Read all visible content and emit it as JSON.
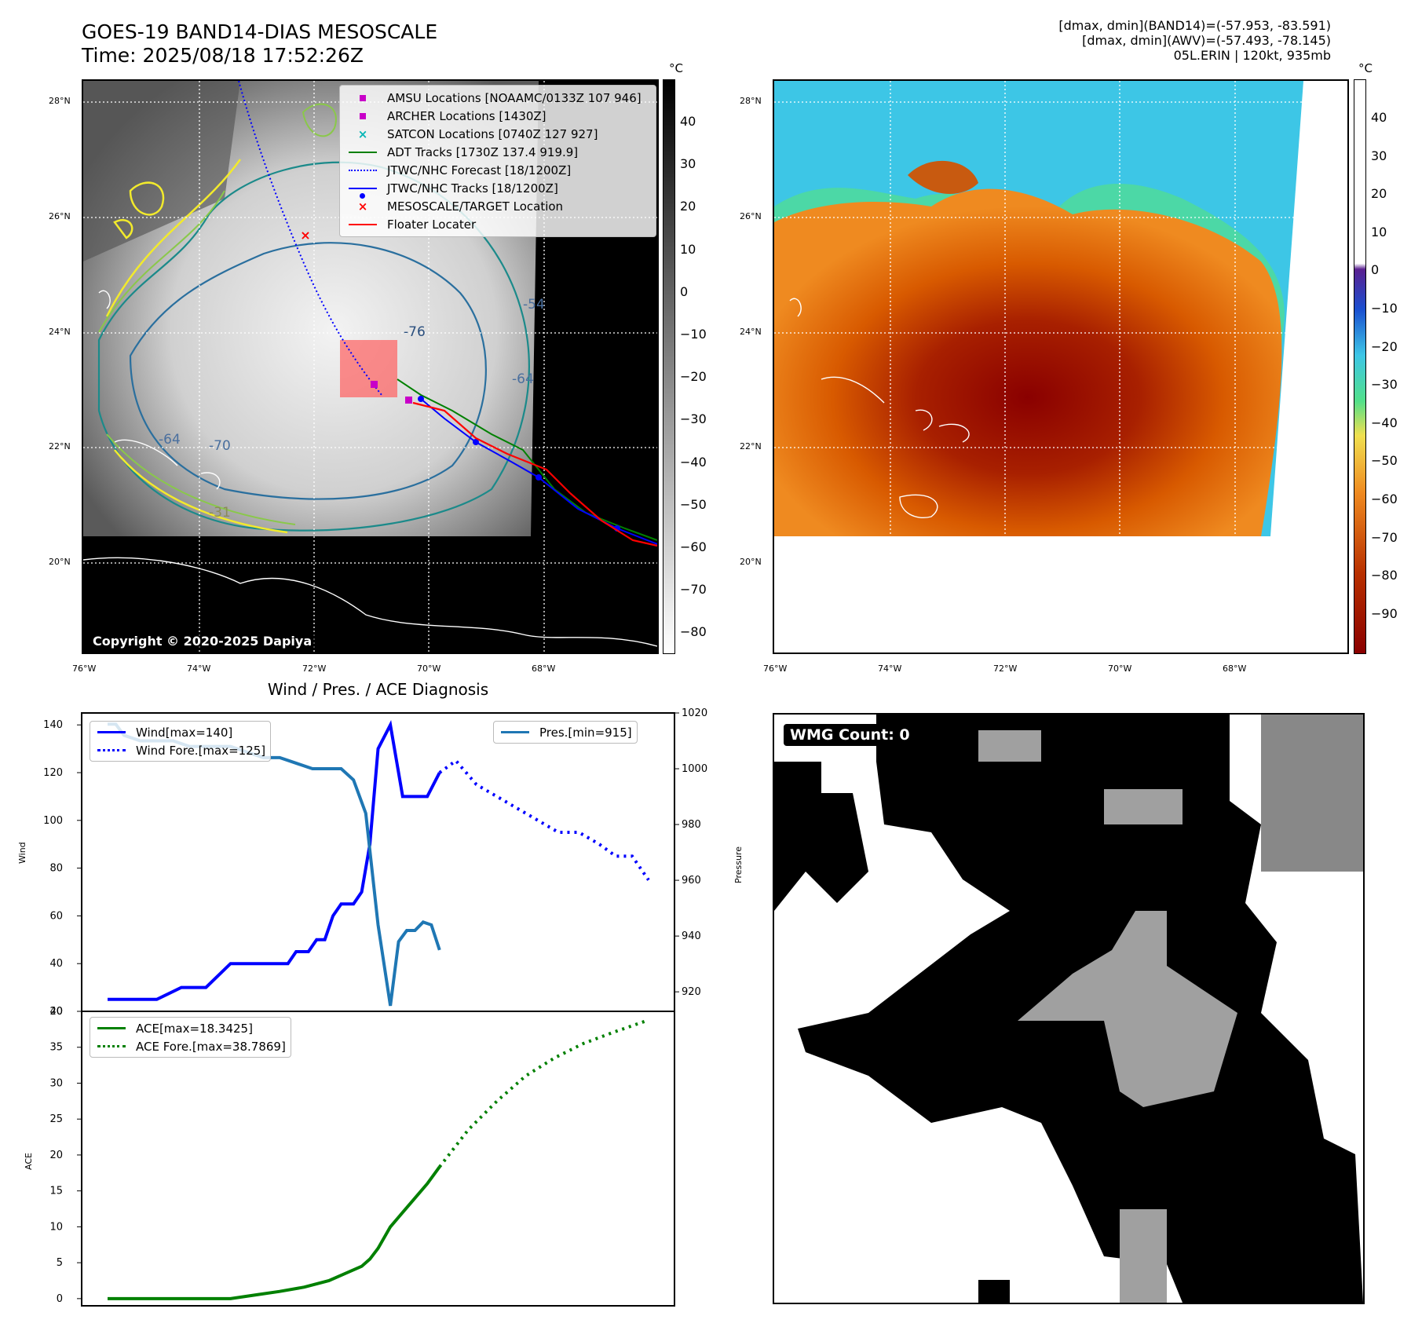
{
  "header": {
    "title_line1": "GOES-19 BAND14-DIAS MESOSCALE",
    "title_line2": "Time: 2025/08/18 17:52:26Z",
    "right_line1": "[dmax, dmin](BAND14)=(-57.953, -83.591)",
    "right_line2": "[dmax, dmin](AWV)=(-57.493, -78.145)",
    "right_line3": "05L.ERIN | 120kt, 935mb"
  },
  "map": {
    "lat_labels": [
      "28°N",
      "26°N",
      "24°N",
      "22°N",
      "20°N"
    ],
    "lon_labels": [
      "76°W",
      "74°W",
      "72°W",
      "70°W",
      "68°W"
    ],
    "copyright": "Copyright © 2020-2025 Dapiya",
    "contour_labels": [
      "-76",
      "-64",
      "-64",
      "-54",
      "-70",
      "-31"
    ],
    "legend": [
      {
        "label": "AMSU Locations [NOAAMC/0133Z 107 946]",
        "color": "#c800c8",
        "sym": "square"
      },
      {
        "label": "ARCHER Locations [1430Z]",
        "color": "#c800c8",
        "sym": "square"
      },
      {
        "label": "SATCON Locations [0740Z 127 927]",
        "color": "#00b4b4",
        "sym": "x"
      },
      {
        "label": "ADT Tracks [1730Z 137.4 919.9]",
        "color": "#008000",
        "sym": "line"
      },
      {
        "label": "JTWC/NHC Forecast [18/1200Z]",
        "color": "#0000ff",
        "sym": "dotted"
      },
      {
        "label": "JTWC/NHC Tracks [18/1200Z]",
        "color": "#0000ff",
        "sym": "linedot"
      },
      {
        "label": "MESOSCALE/TARGET Location",
        "color": "#ff0000",
        "sym": "x"
      },
      {
        "label": "Floater Locater",
        "color": "#ff0000",
        "sym": "line"
      }
    ]
  },
  "colorbar_gray": {
    "unit": "°C",
    "ticks": [
      "40",
      "30",
      "20",
      "10",
      "0",
      "−10",
      "−20",
      "−30",
      "−40",
      "−50",
      "−60",
      "−70",
      "−80"
    ]
  },
  "colorbar_color": {
    "unit": "°C",
    "ticks": [
      "40",
      "30",
      "20",
      "10",
      "0",
      "−10",
      "−20",
      "−30",
      "−40",
      "−50",
      "−60",
      "−70",
      "−80",
      "−90"
    ]
  },
  "chart_data": [
    {
      "type": "line",
      "title": "Wind / Pres. / ACE Diagnosis",
      "ylabel": "Wind",
      "y2label": "Pressure",
      "ylim": [
        20,
        145
      ],
      "y2lim": [
        913,
        1020
      ],
      "yticks": [
        "140",
        "120",
        "100",
        "80",
        "60",
        "40",
        "20"
      ],
      "y2ticks": [
        "1020",
        "1000",
        "980",
        "960",
        "940",
        "920"
      ],
      "legend_left": [
        "Wind[max=140]",
        "Wind Fore.[max=125]"
      ],
      "legend_right": [
        "Pres.[min=915]"
      ],
      "series": [
        {
          "name": "Wind[max=140]",
          "style": "solid",
          "color": "#0000ff",
          "axis": "left",
          "x": [
            0,
            6,
            12,
            18,
            24,
            30,
            36,
            40,
            44,
            46,
            49,
            51,
            53,
            55,
            57,
            60,
            62,
            64,
            66,
            69,
            72,
            75,
            78,
            81
          ],
          "y": [
            25,
            25,
            25,
            30,
            30,
            40,
            40,
            40,
            40,
            45,
            45,
            50,
            50,
            60,
            65,
            65,
            70,
            90,
            130,
            140,
            110,
            110,
            110,
            120
          ]
        },
        {
          "name": "Wind Fore.[max=125]",
          "style": "dotted",
          "color": "#0000ff",
          "axis": "left",
          "x": [
            81,
            85,
            90,
            95,
            100,
            105,
            110,
            115,
            120,
            124,
            128,
            132
          ],
          "y": [
            120,
            125,
            115,
            110,
            105,
            100,
            95,
            95,
            90,
            85,
            85,
            75
          ]
        },
        {
          "name": "Pres.[min=915]",
          "style": "solid",
          "color": "#1f77b4",
          "axis": "right",
          "x": [
            0,
            2,
            4,
            8,
            12,
            16,
            20,
            26,
            30,
            34,
            38,
            42,
            46,
            50,
            54,
            57,
            60,
            63,
            66,
            69,
            71,
            73,
            75,
            77,
            79,
            81
          ],
          "y": [
            1016,
            1016,
            1012,
            1010,
            1010,
            1010,
            1008,
            1008,
            1008,
            1006,
            1004,
            1004,
            1002,
            1000,
            1000,
            1000,
            996,
            984,
            944,
            915,
            938,
            942,
            942,
            945,
            944,
            935
          ]
        }
      ]
    },
    {
      "type": "line",
      "ylabel": "ACE",
      "ylim": [
        -1,
        40
      ],
      "yticks": [
        "40",
        "35",
        "30",
        "25",
        "20",
        "15",
        "10",
        "5",
        "0"
      ],
      "legend": [
        "ACE[max=18.3425]",
        "ACE Fore.[max=38.7869]"
      ],
      "series": [
        {
          "name": "ACE[max=18.3425]",
          "style": "solid",
          "color": "#008000",
          "x": [
            0,
            10,
            20,
            30,
            36,
            42,
            48,
            54,
            58,
            62,
            64,
            66,
            69,
            72,
            75,
            78,
            81
          ],
          "y": [
            0,
            0,
            0,
            0,
            0.5,
            1,
            1.6,
            2.5,
            3.5,
            4.5,
            5.5,
            7,
            10,
            12,
            14,
            16,
            18.34
          ]
        },
        {
          "name": "ACE Fore.[max=38.7869]",
          "style": "dotted",
          "color": "#008000",
          "x": [
            81,
            88,
            95,
            102,
            109,
            116,
            123,
            132
          ],
          "y": [
            18.34,
            23.5,
            27.5,
            31,
            33.5,
            35.5,
            37,
            38.79
          ]
        }
      ]
    }
  ],
  "wmg": {
    "label": "WMG Count: 0"
  }
}
